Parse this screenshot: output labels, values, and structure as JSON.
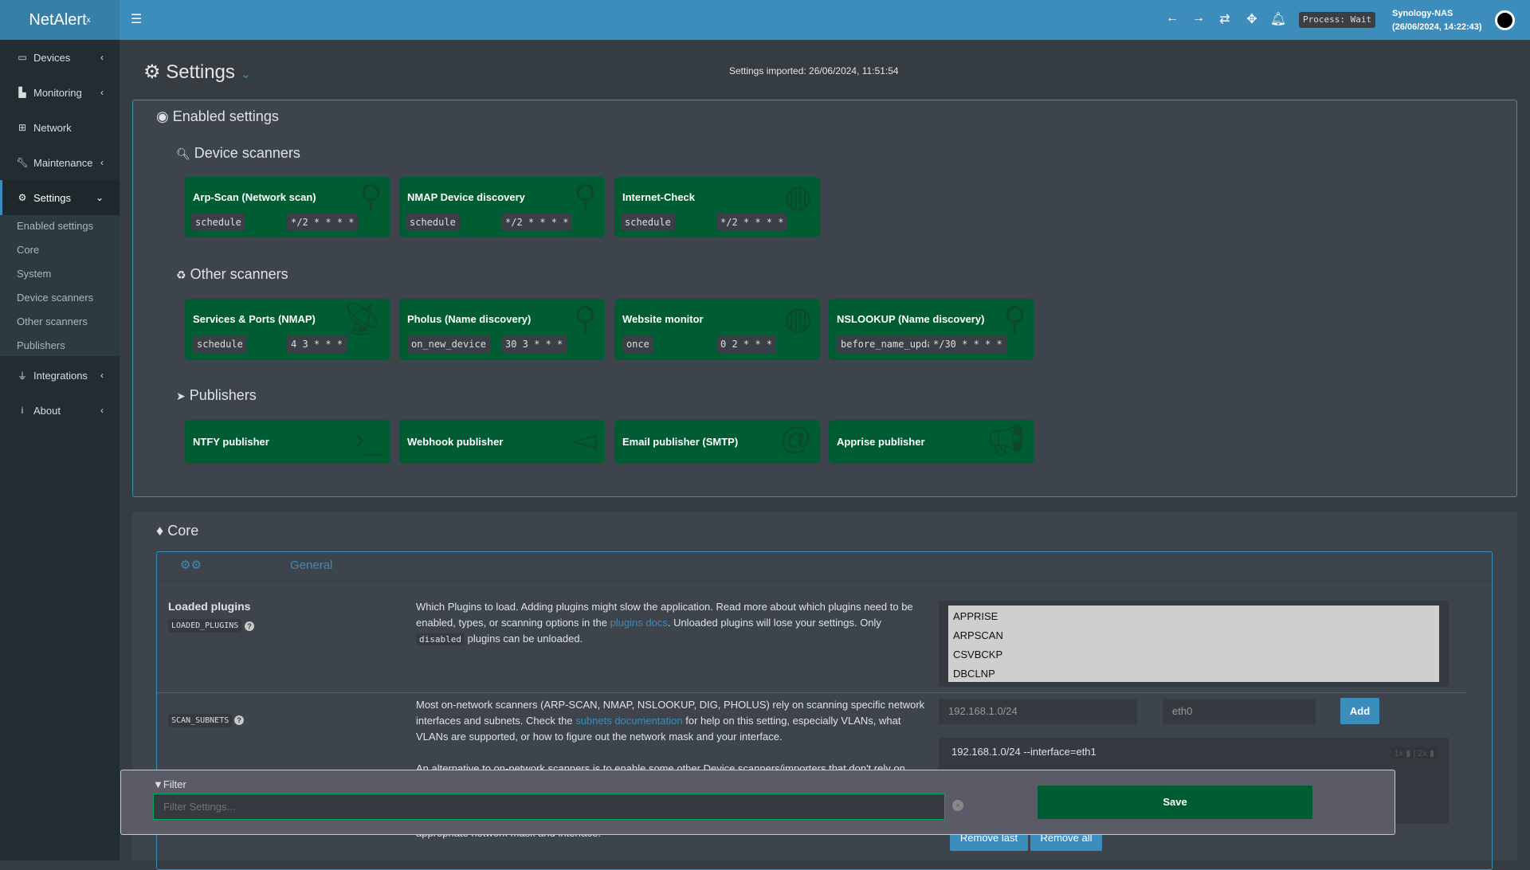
{
  "header": {
    "logo": "NetAlert",
    "logo_sup": "x",
    "process": "Process: Wait",
    "host": "Synology-NAS",
    "datetime": "(26/06/2024, 14:22:43)",
    "icons": [
      "menu-icon",
      "arrow-left-icon",
      "arrow-right-icon",
      "refresh-icon",
      "move-icon",
      "bell-icon",
      "avatar"
    ]
  },
  "sidebar": {
    "items": [
      {
        "label": "Devices",
        "icon": "laptop-icon"
      },
      {
        "label": "Monitoring",
        "icon": "chart-icon"
      },
      {
        "label": "Network",
        "icon": "sitemap-icon"
      },
      {
        "label": "Maintenance",
        "icon": "wrench-icon"
      },
      {
        "label": "Settings",
        "icon": "gear-icon"
      },
      {
        "label": "Integrations",
        "icon": "plug-icon"
      },
      {
        "label": "About",
        "icon": "info-icon"
      }
    ],
    "submenu": [
      "Enabled settings",
      "Core",
      "System",
      "Device scanners",
      "Other scanners",
      "Publishers"
    ]
  },
  "page": {
    "title": "Settings",
    "imported": "Settings imported: 26/06/2024, 11:51:54"
  },
  "enabled": {
    "title": "Enabled settings",
    "device_scanners": {
      "title": "Device scanners",
      "cards": [
        {
          "name": "Arp-Scan (Network scan)",
          "mode": "schedule",
          "cron": "*/2 * * * *",
          "icon": "search-icon"
        },
        {
          "name": "NMAP Device discovery",
          "mode": "schedule",
          "cron": "*/2 * * * *",
          "icon": "search-icon"
        },
        {
          "name": "Internet-Check",
          "mode": "schedule",
          "cron": "*/2 * * * *",
          "icon": "globe-icon"
        }
      ]
    },
    "other_scanners": {
      "title": "Other scanners",
      "cards": [
        {
          "name": "Services & Ports (NMAP)",
          "mode": "schedule",
          "cron": "4 3 * * *",
          "icon": "satellite-dish-icon"
        },
        {
          "name": "Pholus (Name discovery)",
          "mode": "on_new_device",
          "cron": "30 3 * * *",
          "icon": "search-icon"
        },
        {
          "name": "Website monitor",
          "mode": "once",
          "cron": "0 2 * * *",
          "icon": "globe-icon"
        },
        {
          "name": "NSLOOKUP (Name discovery)",
          "mode": "before_name_updates",
          "cron": "*/30 * * * *",
          "icon": "search-icon"
        }
      ]
    },
    "publishers": {
      "title": "Publishers",
      "cards": [
        {
          "name": "NTFY publisher",
          "icon": "terminal-icon"
        },
        {
          "name": "Webhook publisher",
          "icon": "send-icon"
        },
        {
          "name": "Email publisher (SMTP)",
          "icon": "at-icon"
        },
        {
          "name": "Apprise publisher",
          "icon": "bullhorn-icon"
        }
      ]
    }
  },
  "core": {
    "title": "Core",
    "tab": "General",
    "loaded_plugins": {
      "label": "Loaded plugins",
      "key": "LOADED_PLUGINS",
      "desc1": "Which Plugins to load. Adding plugins might slow the application. Read more about which plugins need to be enabled, types, or scanning options in the ",
      "link": "plugins docs",
      "desc2": ". Unloaded plugins will lose your settings. Only ",
      "code": "disabled",
      "desc3": " plugins can be unloaded.",
      "options": [
        "APPRISE",
        "ARPSCAN",
        "CSVBCKP",
        "DBCLNP"
      ]
    },
    "scan_subnets": {
      "key": "SCAN_SUBNETS",
      "desc1": "Most on-network scanners (ARP-SCAN, NMAP, NSLOOKUP, DIG, PHOLUS) rely on scanning specific network interfaces and subnets. Check the ",
      "link": "subnets documentation",
      "desc2": " for help on this setting, especially VLANs, what VLANs are supported, or how to figure out the network mask and your interface.",
      "desc_more": "An alternative to on-network scanners is to enable some other Device scanners/importers that don't rely on",
      "desc_end": "appropriate network mask and interface.",
      "subnet_placeholder": "192.168.1.0/24",
      "iface_placeholder": "eth0",
      "add": "Add",
      "entries": [
        "192.168.1.0/24 --interface=eth1"
      ],
      "x1": "1x",
      "x2": "2x",
      "remove_last": "Remove last",
      "remove_all": "Remove all"
    }
  },
  "filter": {
    "label": "Filter",
    "placeholder": "Filter Settings...",
    "save": "Save"
  }
}
